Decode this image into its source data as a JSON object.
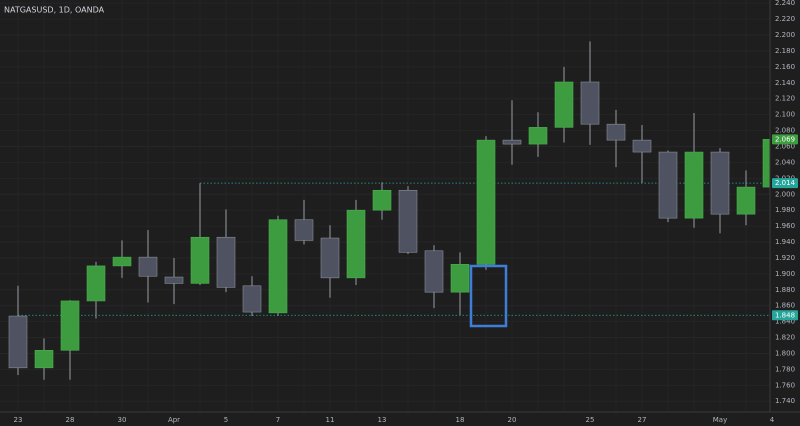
{
  "chart_data": {
    "type": "candlestick",
    "title": "NATGASUSD, 1D, OANDA",
    "categories": [
      "23",
      null,
      "28",
      null,
      "30",
      null,
      "Apr",
      null,
      "5",
      null,
      "7",
      null,
      "11",
      null,
      "13",
      null,
      null,
      "18",
      null,
      "20",
      null,
      null,
      "25",
      null,
      "27",
      null,
      null,
      "May",
      null,
      "4"
    ],
    "series": [
      {
        "up_color": "#3c9c3f",
        "down_color": "#4f5260",
        "open": [
          1.847,
          1.782,
          1.804,
          1.866,
          1.91,
          1.921,
          1.896,
          1.888,
          1.946,
          1.885,
          1.851,
          1.968,
          1.945,
          1.895,
          1.98,
          2.005,
          1.929,
          1.877,
          1.912,
          2.068,
          2.063,
          2.084,
          2.141,
          2.088,
          2.068,
          2.053,
          1.97,
          2.053,
          1.975,
          2.009
        ],
        "high": [
          1.885,
          1.819,
          1.867,
          1.915,
          1.942,
          1.955,
          1.92,
          2.014,
          1.981,
          1.897,
          1.973,
          1.993,
          1.961,
          1.993,
          2.015,
          2.01,
          1.936,
          1.927,
          2.073,
          2.118,
          2.103,
          2.16,
          2.192,
          2.106,
          2.087,
          2.055,
          2.102,
          2.058,
          2.03,
          2.081
        ],
        "low": [
          1.773,
          1.767,
          1.767,
          1.844,
          1.895,
          1.864,
          1.862,
          1.886,
          1.877,
          1.847,
          1.847,
          1.937,
          1.87,
          1.886,
          1.968,
          1.925,
          1.857,
          1.848,
          1.905,
          2.037,
          2.047,
          2.065,
          2.062,
          2.034,
          2.014,
          1.965,
          1.958,
          1.951,
          1.961,
          1.993
        ],
        "close": [
          1.782,
          1.804,
          1.866,
          1.91,
          1.921,
          1.897,
          1.888,
          1.946,
          1.883,
          1.852,
          1.968,
          1.942,
          1.895,
          1.98,
          2.005,
          1.927,
          1.877,
          1.912,
          2.068,
          2.063,
          2.084,
          2.141,
          2.088,
          2.068,
          2.053,
          1.97,
          2.053,
          1.975,
          2.009,
          2.069
        ]
      }
    ],
    "ylim": [
      1.729,
      2.244
    ],
    "yticks": [
      {
        "value": 2.24,
        "label": "2.240"
      },
      {
        "value": 2.22,
        "label": "2.220"
      },
      {
        "value": 2.2,
        "label": "2.200"
      },
      {
        "value": 2.18,
        "label": "2.180"
      },
      {
        "value": 2.16,
        "label": "2.160"
      },
      {
        "value": 2.14,
        "label": "2.140"
      },
      {
        "value": 2.12,
        "label": "2.120"
      },
      {
        "value": 2.1,
        "label": "2.100"
      },
      {
        "value": 2.08,
        "label": "2.080"
      },
      {
        "value": 2.06,
        "label": "2.060"
      },
      {
        "value": 2.04,
        "label": "2.040"
      },
      {
        "value": 2.02,
        "label": "2.020"
      },
      {
        "value": 2.0,
        "label": "2.000"
      },
      {
        "value": 1.98,
        "label": "1.980"
      },
      {
        "value": 1.96,
        "label": "1.960"
      },
      {
        "value": 1.94,
        "label": "1.940"
      },
      {
        "value": 1.92,
        "label": "1.920"
      },
      {
        "value": 1.9,
        "label": "1.900"
      },
      {
        "value": 1.88,
        "label": "1.880"
      },
      {
        "value": 1.86,
        "label": "1.860"
      },
      {
        "value": 1.84,
        "label": "1.840"
      },
      {
        "value": 1.82,
        "label": "1.820"
      },
      {
        "value": 1.8,
        "label": "1.800"
      },
      {
        "value": 1.78,
        "label": "1.780"
      },
      {
        "value": 1.76,
        "label": "1.760"
      },
      {
        "value": 1.74,
        "label": "1.740"
      }
    ],
    "grid": true,
    "last_price": 2.069,
    "last_price_color": "#3c9c3f",
    "levels": [
      2.014,
      1.848
    ],
    "level_color": "#26a69a"
  }
}
